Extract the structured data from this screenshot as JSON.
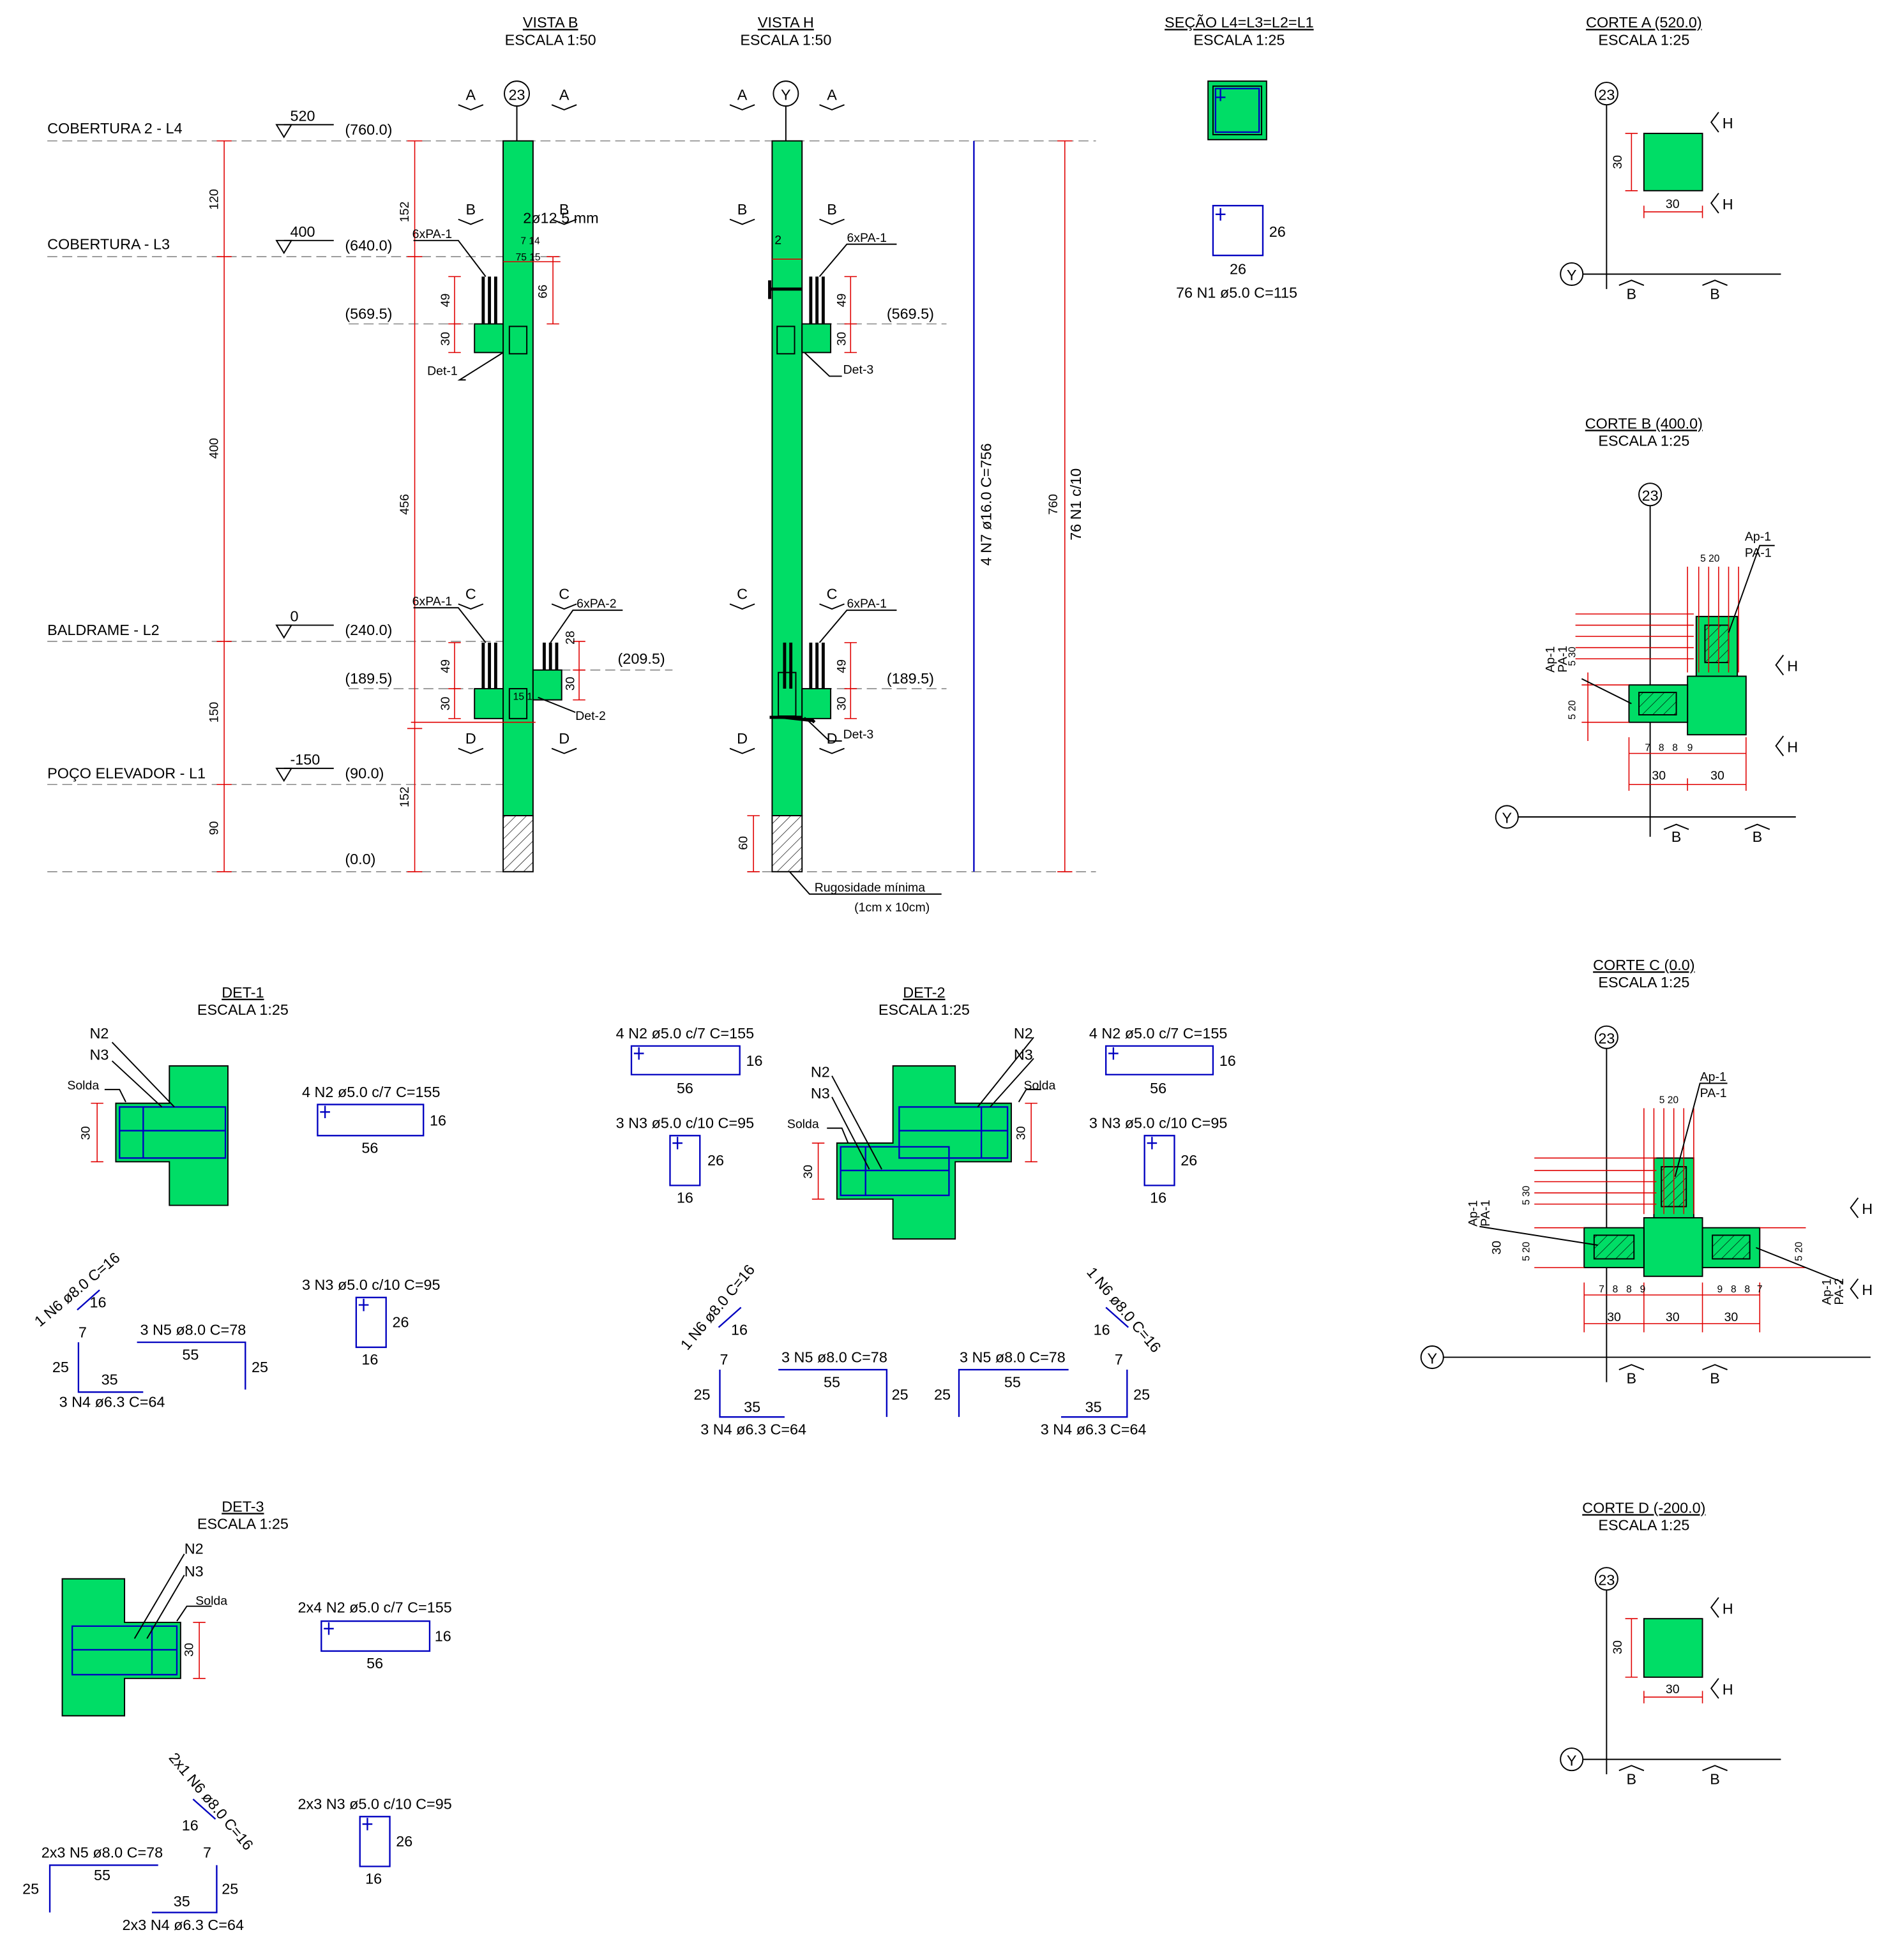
{
  "levels": [
    {
      "name": "COBERTURA 2 - L4",
      "level": "520",
      "elevation": "(760.0)"
    },
    {
      "name": "COBERTURA - L3",
      "level": "400",
      "elevation": "(640.0)"
    },
    {
      "name": "BALDRAME - L2",
      "level": "0",
      "elevation": "(240.0)"
    },
    {
      "name": "POÇO ELEVADOR - L1",
      "level": "-150",
      "elevation": "(90.0)"
    }
  ],
  "base_elevation": "(0.0)",
  "level_dims": [
    "120",
    "400",
    "150",
    "90"
  ],
  "vista_b": {
    "title": "VISTA B",
    "scale": "ESCALA 1:50",
    "axis": "23",
    "cuts": [
      "A",
      "B",
      "C",
      "D"
    ],
    "bar": "2ø12.5 mm",
    "dims": [
      "152",
      "456",
      "152",
      "49",
      "30",
      "66",
      "49",
      "30",
      "28",
      "30"
    ],
    "small_dims": [
      "7 14",
      "75 15",
      "15 15"
    ],
    "groups": [
      "6xPA-1",
      "6xPA-1",
      "6xPA-2"
    ],
    "details": [
      "Det-1",
      "Det-2"
    ],
    "elevations": [
      "(569.5)",
      "(189.5)",
      "(209.5)"
    ]
  },
  "vista_h": {
    "title": "VISTA H",
    "scale": "ESCALA 1:50",
    "axis": "Y",
    "bar_n7": "4 N7 ø16.0 C=756",
    "bar_n1": "76 N1 c/10",
    "total": "760",
    "dims": [
      "49",
      "30",
      "49",
      "30",
      "60",
      "2"
    ],
    "groups": [
      "6xPA-1",
      "6xPA-1"
    ],
    "details": [
      "Det-3",
      "Det-3"
    ],
    "elevations": [
      "(569.5)",
      "(189.5)"
    ],
    "note": [
      "Rugosidade mínima",
      "(1cm x 10cm)"
    ]
  },
  "section": {
    "title": "SEÇÃO L4=L3=L2=L1",
    "scale": "ESCALA 1:25",
    "width": "26",
    "height": "26",
    "bar": "76 N1 ø5.0 C=115"
  },
  "corte_a": {
    "title": "CORTE A (520.0)",
    "scale": "ESCALA 1:25",
    "axis_1": "23",
    "axis_2": "Y",
    "dims": [
      "30",
      "30"
    ],
    "view": "H",
    "cut": "B"
  },
  "corte_b": {
    "title": "CORTE B (400.0)",
    "scale": "ESCALA 1:25",
    "axis_1": "23",
    "axis_2": "Y",
    "dims": [
      "30",
      "30",
      "5 20",
      "5 30",
      "5 20"
    ],
    "labels": [
      "Ap-1",
      "PA-1",
      "Ap-1",
      "PA-1"
    ],
    "spacings": [
      "7",
      "8",
      "8",
      "9"
    ],
    "view": "H",
    "cut": "B"
  },
  "corte_c": {
    "title": "CORTE C (0.0)",
    "scale": "ESCALA 1:25",
    "axis_1": "23",
    "axis_2": "Y",
    "dims": [
      "30",
      "30",
      "30",
      "30",
      "5 20",
      "5 30",
      "5 20",
      "5 20"
    ],
    "labels": [
      "Ap-1",
      "PA-1",
      "Ap-1",
      "PA-1",
      "Ap-1",
      "PA-2"
    ],
    "spacings": [
      "7",
      "8",
      "8",
      "9",
      "9",
      "8",
      "8",
      "7"
    ],
    "view": "H",
    "cut": "B"
  },
  "corte_d": {
    "title": "CORTE D (-200.0)",
    "scale": "ESCALA 1:25",
    "axis_1": "23",
    "axis_2": "Y",
    "dims": [
      "30",
      "30"
    ],
    "view": "H",
    "cut": "B"
  },
  "det_1": {
    "title": "DET-1",
    "scale": "ESCALA 1:25",
    "labels": [
      "N2",
      "N3",
      "Solda"
    ],
    "dim": "30",
    "bars": [
      {
        "name": "4 N2 ø5.0 c/7 C=155",
        "a": "56",
        "b": "16"
      },
      {
        "name": "3 N3 ø5.0 c/10 C=95",
        "a": "16",
        "b": "26"
      },
      {
        "name": "1 N6 ø8.0 C=16",
        "a": "16"
      },
      {
        "name": "3 N5 ø8.0 C=78",
        "a": "55",
        "b": "25"
      },
      {
        "name": "3 N4 ø6.3 C=64",
        "a": "35",
        "b": "25",
        "c": "7"
      }
    ]
  },
  "det_2": {
    "title": "DET-2",
    "scale": "ESCALA 1:25",
    "labels": [
      "N2",
      "N3",
      "Solda",
      "N2",
      "N3",
      "Solda"
    ],
    "dims": [
      "30",
      "30"
    ],
    "bars_left": [
      {
        "name": "4 N2 ø5.0 c/7 C=155",
        "a": "56",
        "b": "16"
      },
      {
        "name": "3 N3 ø5.0 c/10 C=95",
        "a": "16",
        "b": "26"
      },
      {
        "name": "1 N6 ø8.0 C=16",
        "a": "16"
      },
      {
        "name": "3 N5 ø8.0 C=78",
        "a": "55",
        "b": "25"
      },
      {
        "name": "3 N4 ø6.3 C=64",
        "a": "35",
        "b": "25",
        "c": "7"
      }
    ],
    "bars_right": [
      {
        "name": "4 N2 ø5.0 c/7 C=155",
        "a": "56",
        "b": "16"
      },
      {
        "name": "3 N3 ø5.0 c/10 C=95",
        "a": "16",
        "b": "26"
      },
      {
        "name": "1 N6 ø8.0 C=16",
        "a": "16"
      },
      {
        "name": "3 N5 ø8.0 C=78",
        "a": "55",
        "b": "25"
      },
      {
        "name": "3 N4 ø6.3 C=64",
        "a": "35",
        "b": "25",
        "c": "7"
      }
    ]
  },
  "det_3": {
    "title": "DET-3",
    "scale": "ESCALA 1:25",
    "labels": [
      "N2",
      "N3",
      "Solda"
    ],
    "dim": "30",
    "bars": [
      {
        "name": "2x4 N2 ø5.0 c/7 C=155",
        "a": "56",
        "b": "16"
      },
      {
        "name": "2x3 N3 ø5.0 c/10 C=95",
        "a": "16",
        "b": "26"
      },
      {
        "name": "2x1 N6 ø8.0 C=16",
        "a": "16"
      },
      {
        "name": "2x3 N5 ø8.0 C=78",
        "a": "55",
        "b": "25"
      },
      {
        "name": "2x3 N4 ø6.3 C=64",
        "a": "35",
        "b": "25",
        "c": "7"
      }
    ]
  }
}
